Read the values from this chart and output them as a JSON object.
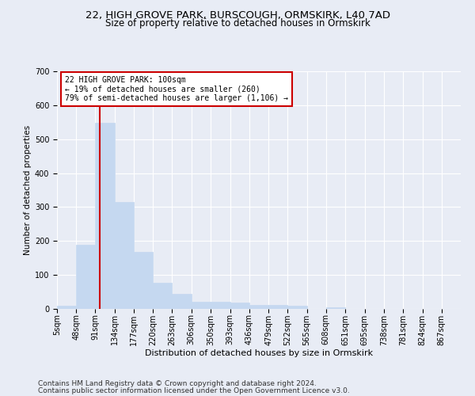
{
  "title1": "22, HIGH GROVE PARK, BURSCOUGH, ORMSKIRK, L40 7AD",
  "title2": "Size of property relative to detached houses in Ormskirk",
  "xlabel": "Distribution of detached houses by size in Ormskirk",
  "ylabel": "Number of detached properties",
  "footer1": "Contains HM Land Registry data © Crown copyright and database right 2024.",
  "footer2": "Contains public sector information licensed under the Open Government Licence v3.0.",
  "bin_labels": [
    "5sqm",
    "48sqm",
    "91sqm",
    "134sqm",
    "177sqm",
    "220sqm",
    "263sqm",
    "306sqm",
    "350sqm",
    "393sqm",
    "436sqm",
    "479sqm",
    "522sqm",
    "565sqm",
    "608sqm",
    "651sqm",
    "695sqm",
    "738sqm",
    "781sqm",
    "824sqm",
    "867sqm"
  ],
  "bar_values": [
    10,
    190,
    548,
    315,
    168,
    78,
    45,
    20,
    20,
    18,
    12,
    12,
    10,
    0,
    5,
    0,
    0,
    0,
    0,
    0
  ],
  "bin_width": 43,
  "bin_starts": [
    5,
    48,
    91,
    134,
    177,
    220,
    263,
    306,
    350,
    393,
    436,
    479,
    522,
    565,
    608,
    651,
    695,
    738,
    781,
    824
  ],
  "bar_color": "#c5d8f0",
  "bar_edge_color": "#c5d8f0",
  "vline_x": 100,
  "vline_color": "#cc0000",
  "annotation_text": "22 HIGH GROVE PARK: 100sqm\n← 19% of detached houses are smaller (260)\n79% of semi-detached houses are larger (1,106) →",
  "annotation_box_color": "#ffffff",
  "annotation_box_edge": "#cc0000",
  "ylim": [
    0,
    700
  ],
  "yticks": [
    0,
    100,
    200,
    300,
    400,
    500,
    600,
    700
  ],
  "bg_color": "#e8ecf5",
  "axes_bg_color": "#e8ecf5",
  "grid_color": "#ffffff",
  "title1_fontsize": 9.5,
  "title2_fontsize": 8.5,
  "xlabel_fontsize": 8,
  "ylabel_fontsize": 7.5,
  "tick_fontsize": 7,
  "annot_fontsize": 7,
  "footer_fontsize": 6.5
}
